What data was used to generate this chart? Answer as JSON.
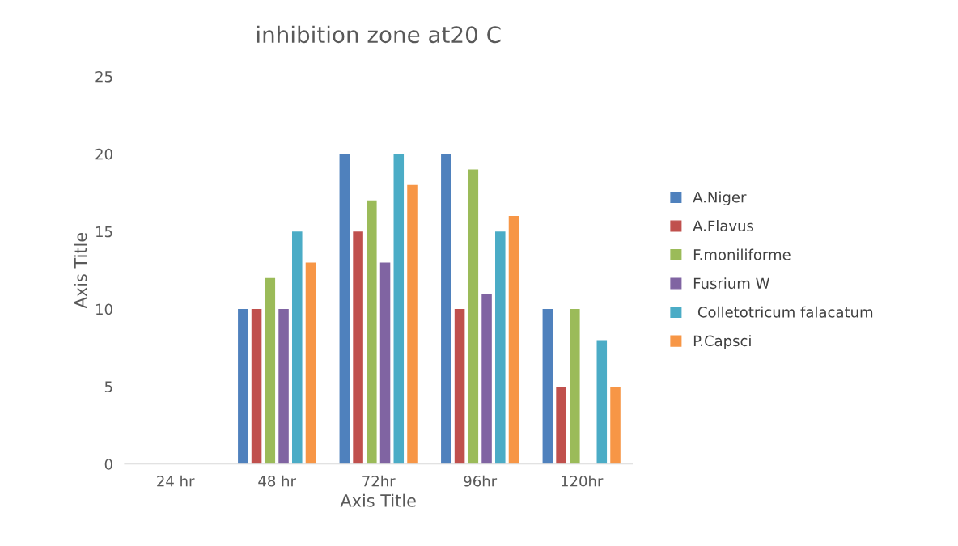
{
  "chart_data": {
    "type": "bar",
    "title": "inhibition zone at20 C",
    "xlabel": "Axis Title",
    "ylabel": "Axis Title",
    "categories": [
      "24 hr",
      "48 hr",
      "72hr",
      "96hr",
      "120hr"
    ],
    "series": [
      {
        "name": "A.Niger",
        "color": "#4f81bd",
        "values": [
          0,
          10,
          20,
          20,
          10
        ]
      },
      {
        "name": "A.Flavus",
        "color": "#c0504d",
        "values": [
          0,
          10,
          15,
          10,
          5
        ]
      },
      {
        "name": "F.moniliforme",
        "color": "#9bbb59",
        "values": [
          0,
          12,
          17,
          19,
          10
        ]
      },
      {
        "name": "Fusrium W",
        "color": "#8064a2",
        "values": [
          0,
          10,
          13,
          11,
          0
        ]
      },
      {
        "name": " Colletotricum falacatum",
        "color": "#4bacc6",
        "values": [
          0,
          15,
          20,
          15,
          8
        ]
      },
      {
        "name": "P.Capsci",
        "color": "#f79646",
        "values": [
          0,
          13,
          18,
          16,
          5
        ]
      }
    ],
    "ylim": [
      0,
      25
    ],
    "yticks": [
      0,
      5,
      10,
      15,
      20,
      25
    ],
    "grid": false,
    "legend": "right"
  }
}
